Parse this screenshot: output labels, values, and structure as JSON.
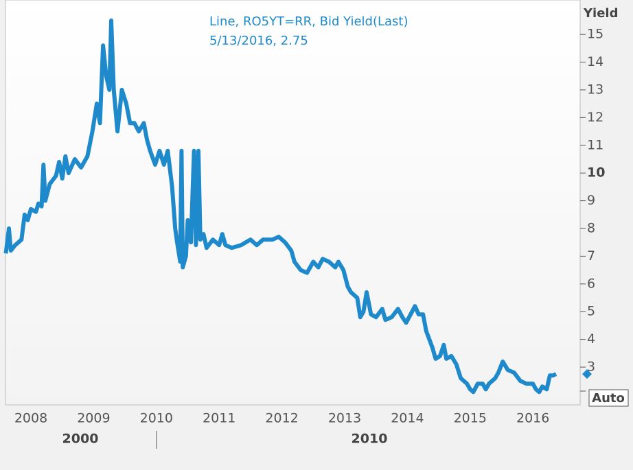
{
  "chart_data": {
    "type": "line",
    "annotations": [
      "Line, RO5YT=RR, Bid Yield(Last)",
      "5/13/2016, 2.75"
    ],
    "y_axis_label": "Yield",
    "scale_mode": "Auto",
    "period_labels": [
      "2000",
      "2010"
    ],
    "xlim": [
      2007.595,
      2016.753
    ],
    "xticks": [
      2008,
      2009,
      2010,
      2011,
      2012,
      2013,
      2014,
      2015,
      2016
    ],
    "ylim": [
      1.64,
      16.24
    ],
    "yticks": [
      3,
      4,
      5,
      6,
      7,
      8,
      9,
      10,
      11,
      12,
      13,
      14,
      15
    ],
    "major_ytick": 10,
    "series": [
      {
        "name": "RO5YT=RR",
        "color": "#1f8acb",
        "x": [
          2007.6,
          2007.65,
          2007.68,
          2007.75,
          2007.85,
          2007.9,
          2007.95,
          2008.0,
          2008.08,
          2008.12,
          2008.17,
          2008.2,
          2008.23,
          2008.3,
          2008.4,
          2008.45,
          2008.5,
          2008.55,
          2008.6,
          2008.7,
          2008.8,
          2008.9,
          2008.98,
          2009.05,
          2009.1,
          2009.15,
          2009.2,
          2009.25,
          2009.28,
          2009.32,
          2009.38,
          2009.45,
          2009.52,
          2009.58,
          2009.65,
          2009.72,
          2009.8,
          2009.85,
          2009.9,
          2009.98,
          2010.05,
          2010.12,
          2010.18,
          2010.25,
          2010.3,
          2010.33,
          2010.38,
          2010.4,
          2010.42,
          2010.47,
          2010.5,
          2010.55,
          2010.6,
          2010.63,
          2010.67,
          2010.7,
          2010.75,
          2010.8,
          2010.9,
          2011.0,
          2011.05,
          2011.1,
          2011.2,
          2011.35,
          2011.5,
          2011.6,
          2011.7,
          2011.85,
          2011.95,
          2012.05,
          2012.15,
          2012.2,
          2012.3,
          2012.4,
          2012.5,
          2012.58,
          2012.65,
          2012.75,
          2012.85,
          2012.9,
          2012.98,
          2013.05,
          2013.1,
          2013.2,
          2013.25,
          2013.3,
          2013.35,
          2013.42,
          2013.5,
          2013.6,
          2013.65,
          2013.75,
          2013.85,
          2013.92,
          2013.98,
          2014.05,
          2014.12,
          2014.18,
          2014.25,
          2014.3,
          2014.4,
          2014.45,
          2014.52,
          2014.58,
          2014.62,
          2014.7,
          2014.78,
          2014.85,
          2014.95,
          2015.0,
          2015.05,
          2015.12,
          2015.2,
          2015.25,
          2015.3,
          2015.4,
          2015.45,
          2015.52,
          2015.6,
          2015.7,
          2015.8,
          2015.9,
          2016.0,
          2016.05,
          2016.1,
          2016.15,
          2016.22,
          2016.27,
          2016.32,
          2016.37
        ],
        "values": [
          7.1,
          8.0,
          7.2,
          7.4,
          7.6,
          8.5,
          8.3,
          8.7,
          8.6,
          8.9,
          8.8,
          10.3,
          9.0,
          9.6,
          9.9,
          10.4,
          9.8,
          10.6,
          10.0,
          10.5,
          10.2,
          10.6,
          11.5,
          12.5,
          11.8,
          14.6,
          13.5,
          13.0,
          15.5,
          13.0,
          11.5,
          13.0,
          12.5,
          11.8,
          11.8,
          11.5,
          11.8,
          11.2,
          10.8,
          10.3,
          10.8,
          10.3,
          10.8,
          9.5,
          8.0,
          7.5,
          6.8,
          10.8,
          6.6,
          7.0,
          8.3,
          7.5,
          10.8,
          7.4,
          10.8,
          7.6,
          7.8,
          7.3,
          7.6,
          7.4,
          7.8,
          7.4,
          7.3,
          7.4,
          7.6,
          7.4,
          7.6,
          7.6,
          7.7,
          7.5,
          7.2,
          6.8,
          6.5,
          6.4,
          6.8,
          6.6,
          6.9,
          6.8,
          6.6,
          6.8,
          6.5,
          5.9,
          5.7,
          5.5,
          4.8,
          5.0,
          5.7,
          4.9,
          4.8,
          5.1,
          4.7,
          4.8,
          5.1,
          4.8,
          4.6,
          4.9,
          5.2,
          4.9,
          4.9,
          4.3,
          3.7,
          3.3,
          3.4,
          3.8,
          3.3,
          3.4,
          3.1,
          2.6,
          2.4,
          2.2,
          2.1,
          2.4,
          2.4,
          2.2,
          2.4,
          2.6,
          2.8,
          3.2,
          2.9,
          2.8,
          2.5,
          2.4,
          2.4,
          2.2,
          2.1,
          2.3,
          2.2,
          2.7,
          2.7,
          2.75
        ]
      }
    ]
  }
}
